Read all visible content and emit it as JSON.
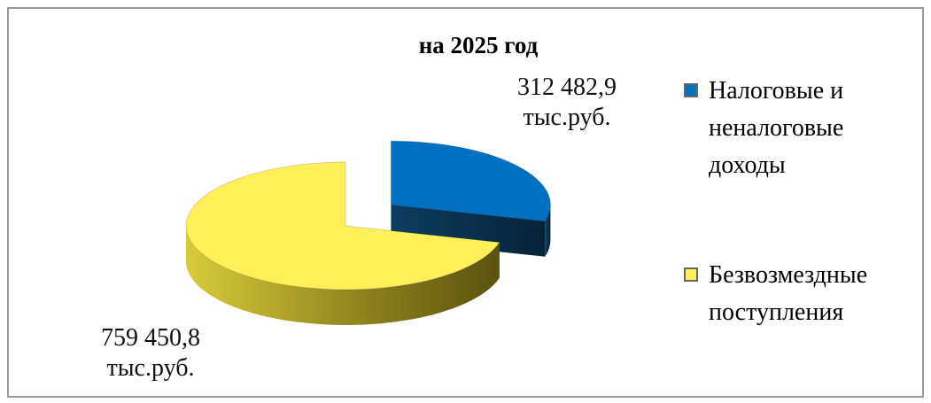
{
  "chart_data": {
    "type": "pie",
    "title": "на 2025 год",
    "categories": [
      "Налоговые и неналоговые доходы",
      "Безвозмездные поступления"
    ],
    "values": [
      312482.9,
      759450.8
    ],
    "value_labels": [
      "312 482,9 тыс.руб.",
      "759 450,8 тыс.руб."
    ],
    "colors": [
      "#0070c0",
      "#fff05a"
    ],
    "legend": "right"
  }
}
